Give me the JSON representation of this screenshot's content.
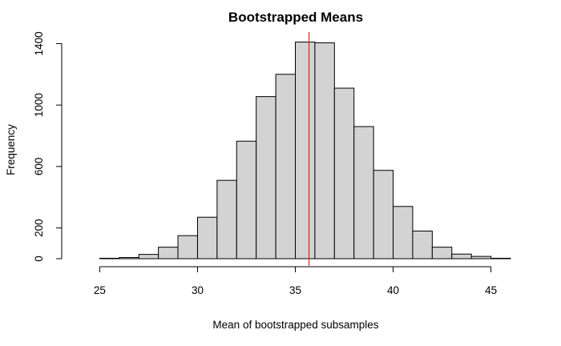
{
  "chart_data": {
    "type": "bar",
    "title": "Bootstrapped Means",
    "xlabel": "Mean of bootstrapped subsamples",
    "ylabel": "Frequency",
    "xlim": [
      24,
      46
    ],
    "ylim": [
      0,
      1470
    ],
    "x_ticks": [
      25,
      30,
      35,
      40,
      45
    ],
    "y_ticks": [
      0,
      200,
      600,
      1000,
      1400
    ],
    "bins": [
      {
        "start": 25,
        "end": 26,
        "count": 3
      },
      {
        "start": 26,
        "end": 27,
        "count": 8
      },
      {
        "start": 27,
        "end": 28,
        "count": 28
      },
      {
        "start": 28,
        "end": 29,
        "count": 75
      },
      {
        "start": 29,
        "end": 30,
        "count": 150
      },
      {
        "start": 30,
        "end": 31,
        "count": 270
      },
      {
        "start": 31,
        "end": 32,
        "count": 510
      },
      {
        "start": 32,
        "end": 33,
        "count": 765
      },
      {
        "start": 33,
        "end": 34,
        "count": 1055
      },
      {
        "start": 34,
        "end": 35,
        "count": 1200
      },
      {
        "start": 35,
        "end": 36,
        "count": 1410
      },
      {
        "start": 36,
        "end": 37,
        "count": 1405
      },
      {
        "start": 37,
        "end": 38,
        "count": 1110
      },
      {
        "start": 38,
        "end": 39,
        "count": 860
      },
      {
        "start": 39,
        "end": 40,
        "count": 575
      },
      {
        "start": 40,
        "end": 41,
        "count": 340
      },
      {
        "start": 41,
        "end": 42,
        "count": 180
      },
      {
        "start": 42,
        "end": 43,
        "count": 75
      },
      {
        "start": 43,
        "end": 44,
        "count": 30
      },
      {
        "start": 44,
        "end": 45,
        "count": 15
      },
      {
        "start": 45,
        "end": 46,
        "count": 3
      }
    ],
    "reference_line": {
      "x": 35.7,
      "color": "#e0202a"
    },
    "bar_color": "#d3d3d3",
    "grid": false
  }
}
